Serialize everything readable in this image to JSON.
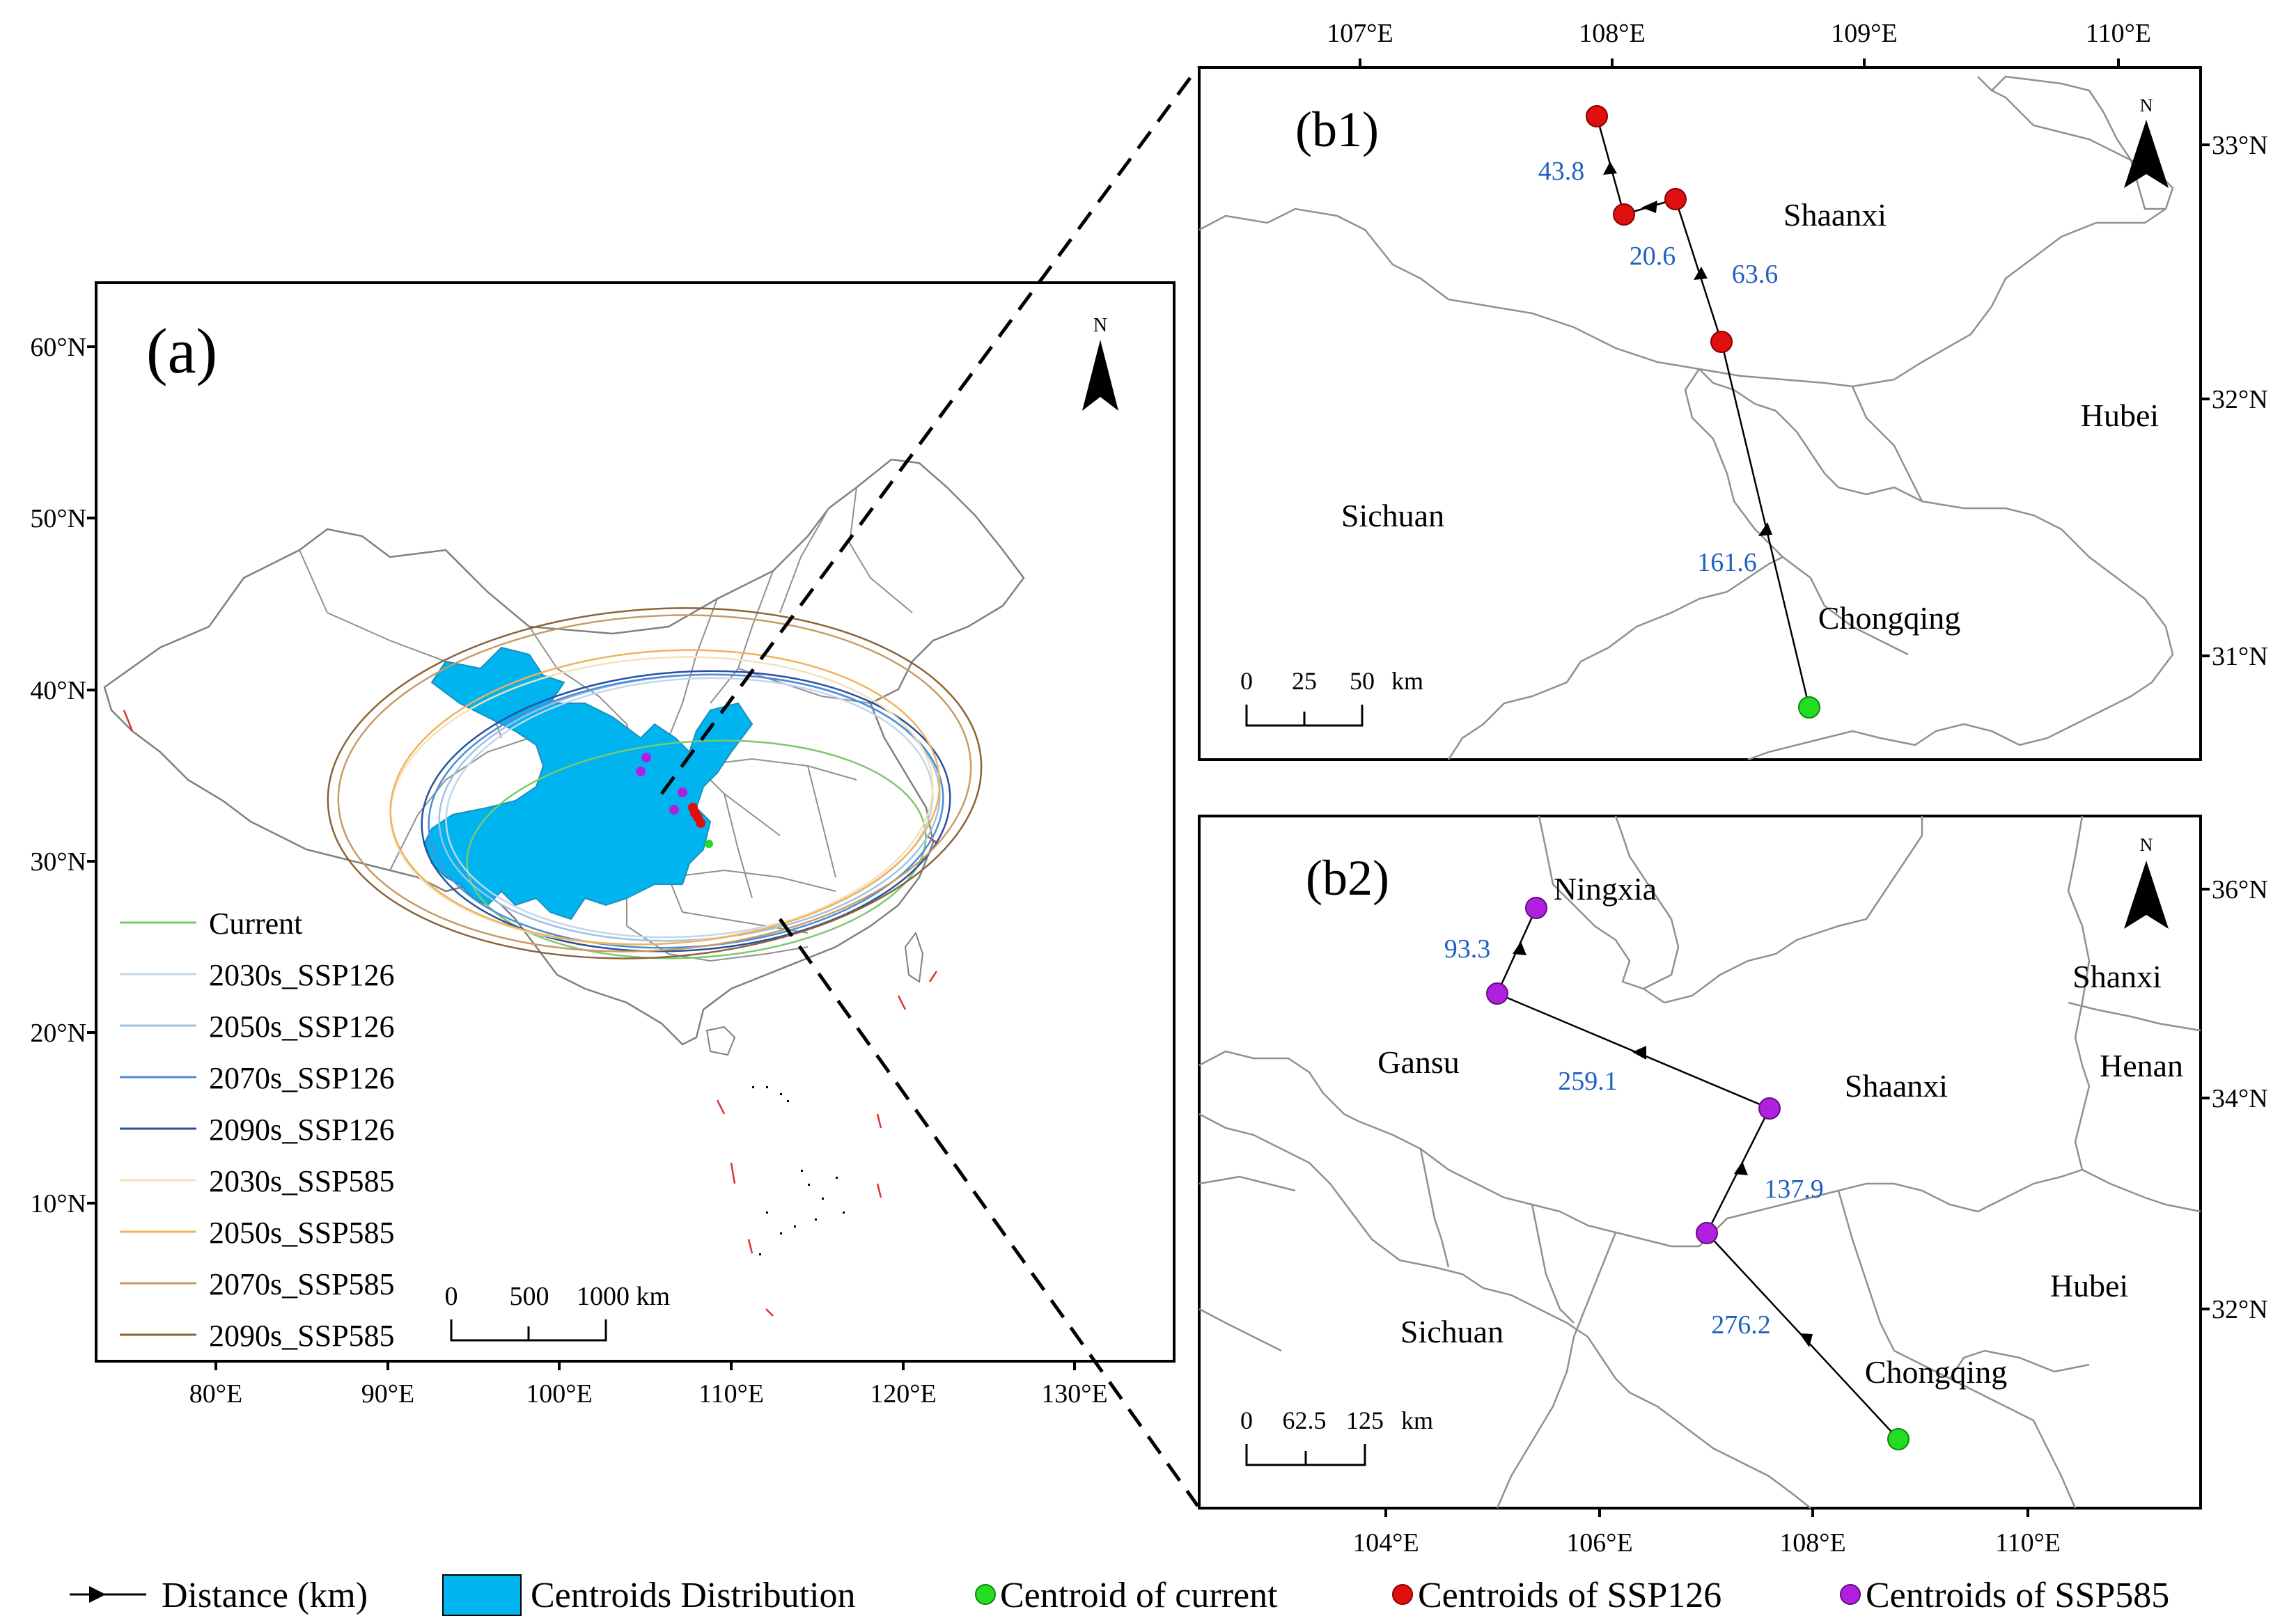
{
  "panel_a": {
    "label": "(a)",
    "north_label": "N",
    "lat_labels": [
      "60°N",
      "50°N",
      "40°N",
      "30°N",
      "20°N",
      "10°N"
    ],
    "lon_labels": [
      "80°E",
      "90°E",
      "100°E",
      "110°E",
      "120°E",
      "130°E"
    ],
    "scale_labels": [
      "0",
      "500",
      "1000 km"
    ],
    "legend": [
      {
        "label": "Current",
        "color": "#7cc86e"
      },
      {
        "label": "2030s_SSP126",
        "color": "#c4d6ea"
      },
      {
        "label": "2050s_SSP126",
        "color": "#9ec2e3"
      },
      {
        "label": "2070s_SSP126",
        "color": "#4a8ed6"
      },
      {
        "label": "2090s_SSP126",
        "color": "#2b4f9e"
      },
      {
        "label": "2030s_SSP585",
        "color": "#f4e1b8"
      },
      {
        "label": "2050s_SSP585",
        "color": "#f0b25a"
      },
      {
        "label": "2070s_SSP585",
        "color": "#c99a65"
      },
      {
        "label": "2090s_SSP585",
        "color": "#8b6335"
      }
    ]
  },
  "panel_b1": {
    "label": "(b1)",
    "north_label": "N",
    "lon_labels": [
      "107°E",
      "108°E",
      "109°E",
      "110°E"
    ],
    "lat_labels": [
      "33°N",
      "32°N",
      "31°N"
    ],
    "regions": [
      "Shaanxi",
      "Hubei",
      "Sichuan",
      "Chongqing"
    ],
    "distances": [
      "43.8",
      "20.6",
      "63.6",
      "161.6"
    ],
    "scale_labels": [
      "0",
      "25",
      "50",
      "km"
    ]
  },
  "panel_b2": {
    "label": "(b2)",
    "north_label": "N",
    "lon_labels": [
      "104°E",
      "106°E",
      "108°E",
      "110°E"
    ],
    "lat_labels": [
      "36°N",
      "34°N",
      "32°N"
    ],
    "regions": [
      "Ningxia",
      "Shanxi",
      "Gansu",
      "Henan",
      "Shaanxi",
      "Hubei",
      "Sichuan",
      "Chongqing"
    ],
    "distances": [
      "93.3",
      "259.1",
      "137.9",
      "276.2"
    ],
    "scale_labels": [
      "0",
      "62.5",
      "125",
      "km"
    ]
  },
  "bottom_legend": {
    "distance": "Distance (km)",
    "distribution": "Centroids Distribution",
    "current": "Centroid of current",
    "ssp126": "Centroids of SSP126",
    "ssp585": "Centroids of SSP585"
  },
  "colors": {
    "distribution_fill": "#00b4f0",
    "current_point": "#22dd22",
    "ssp126_point": "#e01010",
    "ssp585_point": "#b020e0",
    "distance_text": "#2060c0",
    "boundary": "#808080"
  }
}
